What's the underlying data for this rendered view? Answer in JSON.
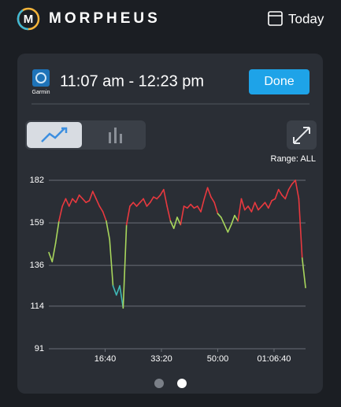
{
  "header": {
    "logo": "M",
    "brand": "MORPHEUS",
    "date_button": "Today"
  },
  "card": {
    "source": "Garmin",
    "time_range": "11:07 am - 12:23 pm",
    "done_button": "Done",
    "range_label": "Range: ALL"
  },
  "chart_data": {
    "type": "line",
    "x": [
      0,
      60,
      120,
      180,
      240,
      300,
      360,
      420,
      480,
      540,
      600,
      660,
      720,
      780,
      840,
      900,
      960,
      1020,
      1080,
      1140,
      1200,
      1260,
      1320,
      1380,
      1440,
      1500,
      1560,
      1620,
      1680,
      1740,
      1800,
      1860,
      1920,
      1980,
      2040,
      2100,
      2160,
      2220,
      2280,
      2340,
      2400,
      2460,
      2520,
      2580,
      2640,
      2700,
      2760,
      2820,
      2880,
      2940,
      3000,
      3060,
      3120,
      3180,
      3240,
      3300,
      3360,
      3420,
      3480,
      3540,
      3600,
      3660,
      3720,
      3780,
      3840,
      3900,
      3960,
      4020,
      4080,
      4140,
      4200,
      4260,
      4320,
      4380,
      4440,
      4500,
      4560
    ],
    "series": [
      {
        "values": [
          143,
          138,
          148,
          160,
          168,
          172,
          168,
          172,
          170,
          174,
          172,
          170,
          171,
          176,
          172,
          168,
          165,
          160,
          150,
          125,
          120,
          125,
          113,
          158,
          168,
          170,
          168,
          170,
          172,
          168,
          170,
          173,
          172,
          174,
          177,
          168,
          160,
          156,
          162,
          158,
          168,
          167,
          169,
          167,
          168,
          165,
          172,
          178,
          173,
          170,
          164,
          162,
          158,
          154,
          158,
          163,
          160,
          172,
          166,
          168,
          165,
          170,
          166,
          168,
          170,
          167,
          171,
          172,
          177,
          174,
          172,
          177,
          180,
          182,
          172,
          140,
          124
        ]
      }
    ],
    "color_zones": [
      {
        "min": 0,
        "color": "#3fb8b6"
      },
      {
        "min": 140,
        "color": "#a8d65c"
      },
      {
        "min": 165,
        "color": "#e8393f"
      }
    ],
    "xlim": [
      0,
      4560
    ],
    "xticks": [
      {
        "value": 1000,
        "label": "16:40"
      },
      {
        "value": 2000,
        "label": "33:20"
      },
      {
        "value": 3000,
        "label": "50:00"
      },
      {
        "value": 4000,
        "label": "01:06:40"
      }
    ],
    "ylim": [
      91,
      182
    ],
    "yticks": [
      91,
      114,
      136,
      159,
      182
    ],
    "grid": true
  }
}
